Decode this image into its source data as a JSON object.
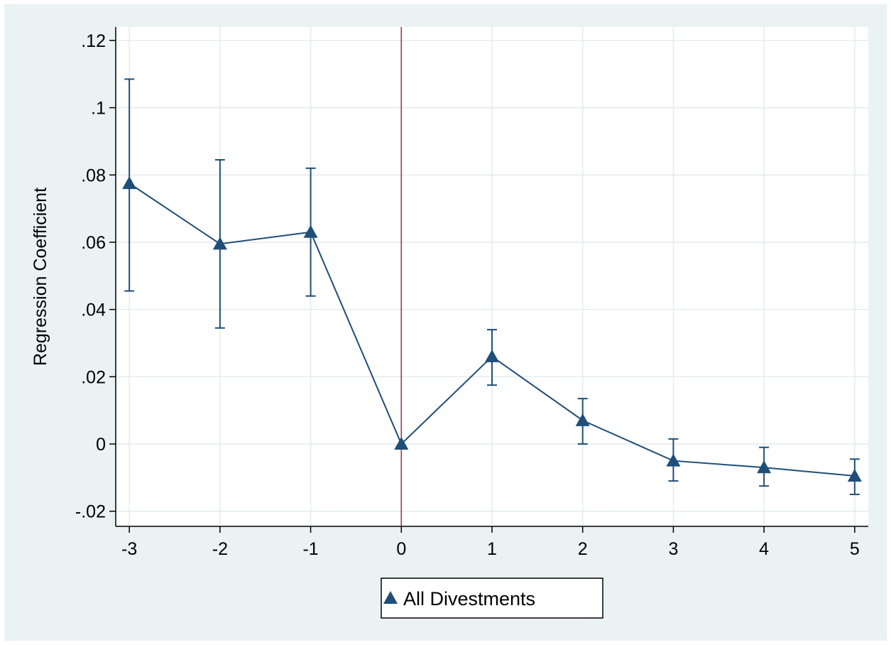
{
  "chart_data": {
    "type": "line",
    "title": "",
    "xlabel": "",
    "ylabel": "Regression Coefficient",
    "x": [
      -3,
      -2,
      -1,
      0,
      1,
      2,
      3,
      4,
      5
    ],
    "x_ticks": [
      "-3",
      "-2",
      "-1",
      "0",
      "1",
      "2",
      "3",
      "4",
      "5"
    ],
    "y_ticks": [
      {
        "value": 0.12,
        "label": ".12"
      },
      {
        "value": 0.1,
        "label": ".1"
      },
      {
        "value": 0.08,
        "label": ".08"
      },
      {
        "value": 0.06,
        "label": ".06"
      },
      {
        "value": 0.04,
        "label": ".04"
      },
      {
        "value": 0.02,
        "label": ".02"
      },
      {
        "value": 0,
        "label": "0"
      },
      {
        "value": -0.02,
        "label": "-.02"
      }
    ],
    "xlim": [
      -3.15,
      5.15
    ],
    "ylim": [
      -0.0245,
      0.124
    ],
    "grid": true,
    "reference_line": {
      "x": 0,
      "color": "#a0344e"
    },
    "legend": {
      "position": "bottom-center"
    },
    "series": [
      {
        "name": "All Divestments",
        "marker": "triangle",
        "color": "#1f4e79",
        "values": [
          0.0775,
          0.0595,
          0.063,
          0.0,
          0.026,
          0.007,
          -0.005,
          -0.007,
          -0.0095
        ],
        "ci_low": [
          0.0455,
          0.0345,
          0.044,
          0.0,
          0.0175,
          0.0,
          -0.011,
          -0.0125,
          -0.015
        ],
        "ci_high": [
          0.1085,
          0.0845,
          0.082,
          0.0,
          0.034,
          0.0135,
          0.0015,
          -0.001,
          -0.0045
        ]
      }
    ]
  }
}
